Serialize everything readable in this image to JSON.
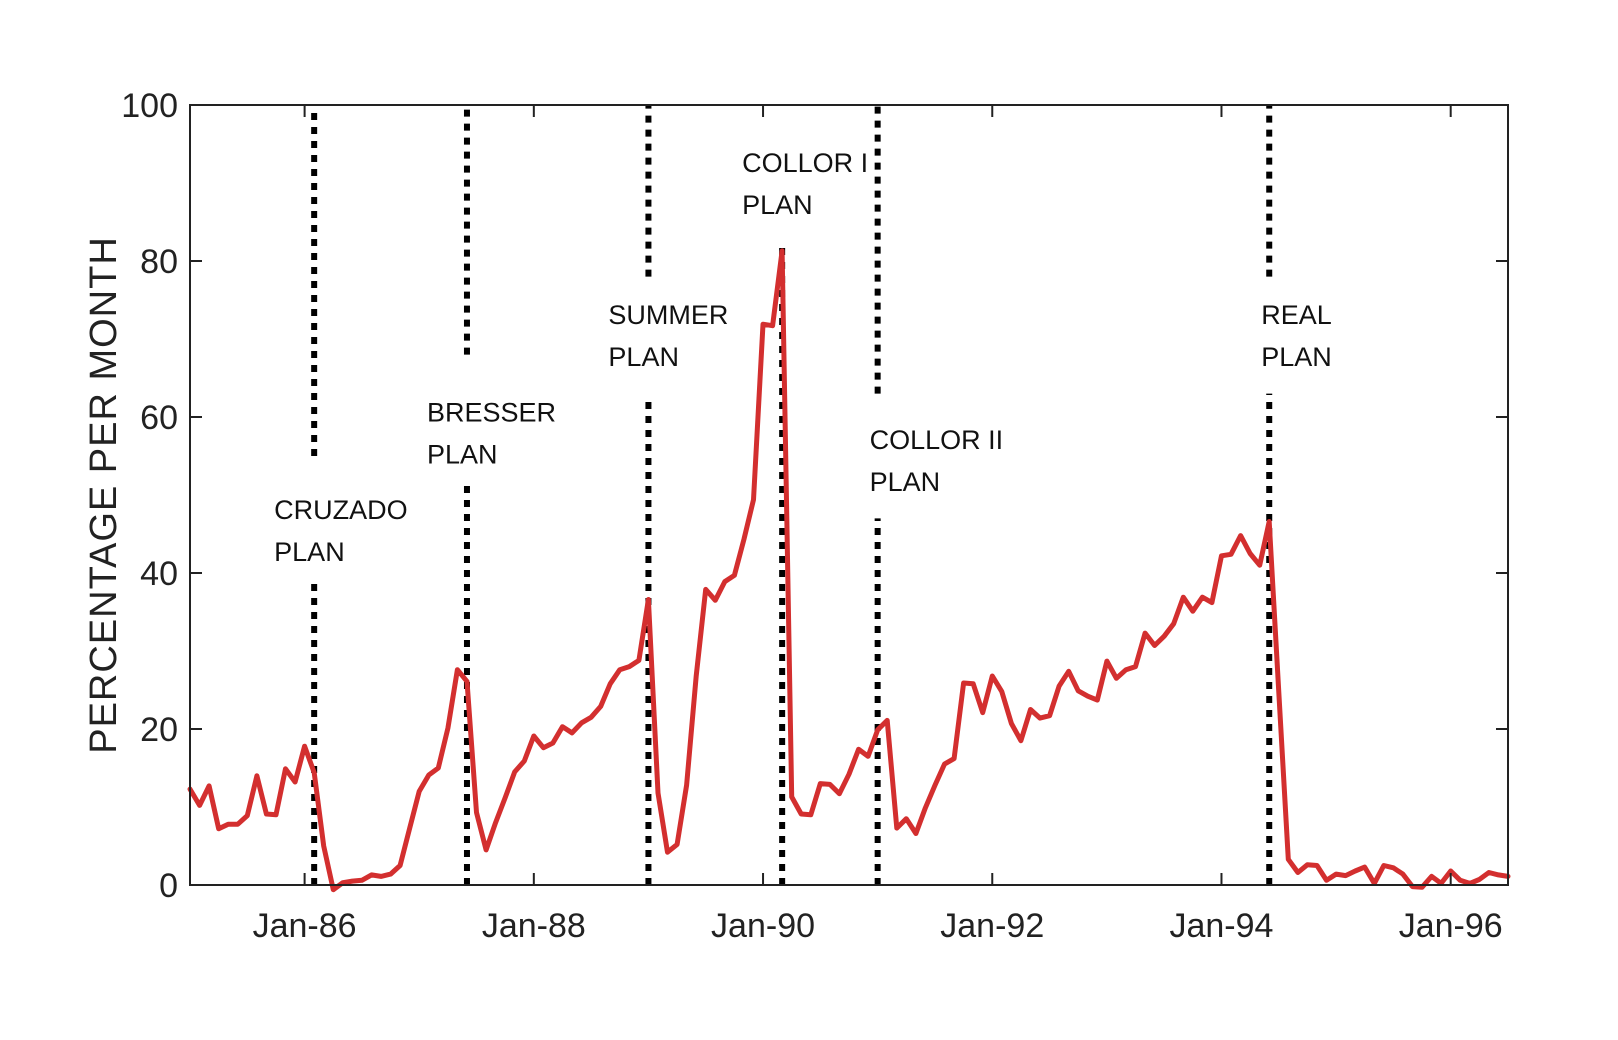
{
  "chart_data": {
    "type": "line",
    "title": "",
    "xlabel": "",
    "ylabel": "PERCENTAGE PER MONTH",
    "ylim": [
      0,
      100
    ],
    "yticks": [
      0,
      20,
      40,
      60,
      80,
      100
    ],
    "xlim": [
      "1985-01",
      "1996-07"
    ],
    "xticks": [
      {
        "label": "Jan-86",
        "date": "1986-01"
      },
      {
        "label": "Jan-88",
        "date": "1988-01"
      },
      {
        "label": "Jan-90",
        "date": "1990-01"
      },
      {
        "label": "Jan-92",
        "date": "1992-01"
      },
      {
        "label": "Jan-94",
        "date": "1994-01"
      },
      {
        "label": "Jan-96",
        "date": "1996-01"
      }
    ],
    "grid": false,
    "series": [
      {
        "color": "#d32f2f",
        "points": [
          [
            "1985-01",
            12.3
          ],
          [
            "1985-02",
            10.2
          ],
          [
            "1985-03",
            12.7
          ],
          [
            "1985-04",
            7.2
          ],
          [
            "1985-05",
            7.8
          ],
          [
            "1985-06",
            7.8
          ],
          [
            "1985-07",
            8.9
          ],
          [
            "1985-08",
            14.0
          ],
          [
            "1985-09",
            9.1
          ],
          [
            "1985-10",
            9.0
          ],
          [
            "1985-11",
            14.9
          ],
          [
            "1985-12",
            13.2
          ],
          [
            "1986-01",
            17.8
          ],
          [
            "1986-02",
            14.4
          ],
          [
            "1986-03",
            5.0
          ],
          [
            "1986-04",
            -0.6
          ],
          [
            "1986-05",
            0.3
          ],
          [
            "1986-06",
            0.5
          ],
          [
            "1986-07",
            0.6
          ],
          [
            "1986-08",
            1.3
          ],
          [
            "1986-09",
            1.1
          ],
          [
            "1986-10",
            1.4
          ],
          [
            "1986-11",
            2.5
          ],
          [
            "1986-12",
            7.3
          ],
          [
            "1987-01",
            12.0
          ],
          [
            "1987-02",
            14.1
          ],
          [
            "1987-03",
            15.0
          ],
          [
            "1987-04",
            20.1
          ],
          [
            "1987-05",
            27.6
          ],
          [
            "1987-06",
            26.1
          ],
          [
            "1987-07",
            9.3
          ],
          [
            "1987-08",
            4.5
          ],
          [
            "1987-09",
            8.0
          ],
          [
            "1987-10",
            11.2
          ],
          [
            "1987-11",
            14.5
          ],
          [
            "1987-12",
            15.9
          ],
          [
            "1988-01",
            19.1
          ],
          [
            "1988-02",
            17.6
          ],
          [
            "1988-03",
            18.2
          ],
          [
            "1988-04",
            20.3
          ],
          [
            "1988-05",
            19.5
          ],
          [
            "1988-06",
            20.8
          ],
          [
            "1988-07",
            21.5
          ],
          [
            "1988-08",
            22.9
          ],
          [
            "1988-09",
            25.8
          ],
          [
            "1988-10",
            27.6
          ],
          [
            "1988-11",
            28.0
          ],
          [
            "1988-12",
            28.8
          ],
          [
            "1989-01",
            36.6
          ],
          [
            "1989-02",
            11.8
          ],
          [
            "1989-03",
            4.2
          ],
          [
            "1989-04",
            5.2
          ],
          [
            "1989-05",
            12.8
          ],
          [
            "1989-06",
            26.8
          ],
          [
            "1989-07",
            37.9
          ],
          [
            "1989-08",
            36.5
          ],
          [
            "1989-09",
            38.9
          ],
          [
            "1989-10",
            39.7
          ],
          [
            "1989-11",
            44.3
          ],
          [
            "1989-12",
            49.4
          ],
          [
            "1990-01",
            71.9
          ],
          [
            "1990-02",
            71.7
          ],
          [
            "1990-03",
            81.3
          ],
          [
            "1990-04",
            11.3
          ],
          [
            "1990-05",
            9.1
          ],
          [
            "1990-06",
            9.0
          ],
          [
            "1990-07",
            13.0
          ],
          [
            "1990-08",
            12.9
          ],
          [
            "1990-09",
            11.7
          ],
          [
            "1990-10",
            14.2
          ],
          [
            "1990-11",
            17.4
          ],
          [
            "1990-12",
            16.5
          ],
          [
            "1991-01",
            19.9
          ],
          [
            "1991-02",
            21.1
          ],
          [
            "1991-03",
            7.3
          ],
          [
            "1991-04",
            8.5
          ],
          [
            "1991-05",
            6.6
          ],
          [
            "1991-06",
            9.9
          ],
          [
            "1991-07",
            12.8
          ],
          [
            "1991-08",
            15.5
          ],
          [
            "1991-09",
            16.2
          ],
          [
            "1991-10",
            25.9
          ],
          [
            "1991-11",
            25.8
          ],
          [
            "1991-12",
            22.1
          ],
          [
            "1992-01",
            26.8
          ],
          [
            "1992-02",
            24.8
          ],
          [
            "1992-03",
            20.7
          ],
          [
            "1992-04",
            18.5
          ],
          [
            "1992-05",
            22.5
          ],
          [
            "1992-06",
            21.4
          ],
          [
            "1992-07",
            21.7
          ],
          [
            "1992-08",
            25.5
          ],
          [
            "1992-09",
            27.4
          ],
          [
            "1992-10",
            24.9
          ],
          [
            "1992-11",
            24.2
          ],
          [
            "1992-12",
            23.7
          ],
          [
            "1993-01",
            28.7
          ],
          [
            "1993-02",
            26.5
          ],
          [
            "1993-03",
            27.6
          ],
          [
            "1993-04",
            28.0
          ],
          [
            "1993-05",
            32.3
          ],
          [
            "1993-06",
            30.7
          ],
          [
            "1993-07",
            31.9
          ],
          [
            "1993-08",
            33.5
          ],
          [
            "1993-09",
            36.9
          ],
          [
            "1993-10",
            35.1
          ],
          [
            "1993-11",
            36.9
          ],
          [
            "1993-12",
            36.2
          ],
          [
            "1994-01",
            42.2
          ],
          [
            "1994-02",
            42.4
          ],
          [
            "1994-03",
            44.8
          ],
          [
            "1994-04",
            42.5
          ],
          [
            "1994-05",
            41.0
          ],
          [
            "1994-06",
            46.6
          ],
          [
            "1994-07",
            24.7
          ],
          [
            "1994-08",
            3.3
          ],
          [
            "1994-09",
            1.6
          ],
          [
            "1994-10",
            2.6
          ],
          [
            "1994-11",
            2.5
          ],
          [
            "1994-12",
            0.6
          ],
          [
            "1995-01",
            1.4
          ],
          [
            "1995-02",
            1.2
          ],
          [
            "1995-03",
            1.8
          ],
          [
            "1995-04",
            2.3
          ],
          [
            "1995-05",
            0.2
          ],
          [
            "1995-06",
            2.5
          ],
          [
            "1995-07",
            2.2
          ],
          [
            "1995-08",
            1.4
          ],
          [
            "1995-09",
            -0.2
          ],
          [
            "1995-10",
            -0.3
          ],
          [
            "1995-11",
            1.1
          ],
          [
            "1995-12",
            0.2
          ],
          [
            "1996-01",
            1.8
          ],
          [
            "1996-02",
            0.6
          ],
          [
            "1996-03",
            0.2
          ],
          [
            "1996-04",
            0.7
          ],
          [
            "1996-05",
            1.6
          ],
          [
            "1996-06",
            1.3
          ],
          [
            "1996-07",
            1.1
          ]
        ]
      }
    ],
    "annotations": [
      {
        "date": "1986-02",
        "lines": [
          "CRUZADO",
          "PLAN"
        ],
        "label_top_y": 50,
        "label_at": "left",
        "gap": [
          39,
          55
        ]
      },
      {
        "date": "1987-06",
        "lines": [
          "BRESSER",
          "PLAN"
        ],
        "label_top_y": 62.5,
        "label_at": "left",
        "gap": [
          52,
          68
        ]
      },
      {
        "date": "1989-01",
        "lines": [
          "SUMMER",
          "PLAN"
        ],
        "label_top_y": 75,
        "label_at": "left",
        "gap": [
          62,
          78
        ]
      },
      {
        "date": "1990-03",
        "lines": [
          "COLLOR I",
          "PLAN"
        ],
        "label_top_y": 94.5,
        "label_at": "left",
        "gap": [
          82,
          100
        ]
      },
      {
        "date": "1991-01",
        "lines": [
          "COLLOR II",
          "PLAN"
        ],
        "label_top_y": 59,
        "label_at": "right",
        "gap": [
          47,
          63
        ]
      },
      {
        "date": "1994-06",
        "lines": [
          "REAL",
          "PLAN"
        ],
        "label_top_y": 75,
        "label_at": "right",
        "gap": [
          63,
          78
        ]
      }
    ]
  }
}
